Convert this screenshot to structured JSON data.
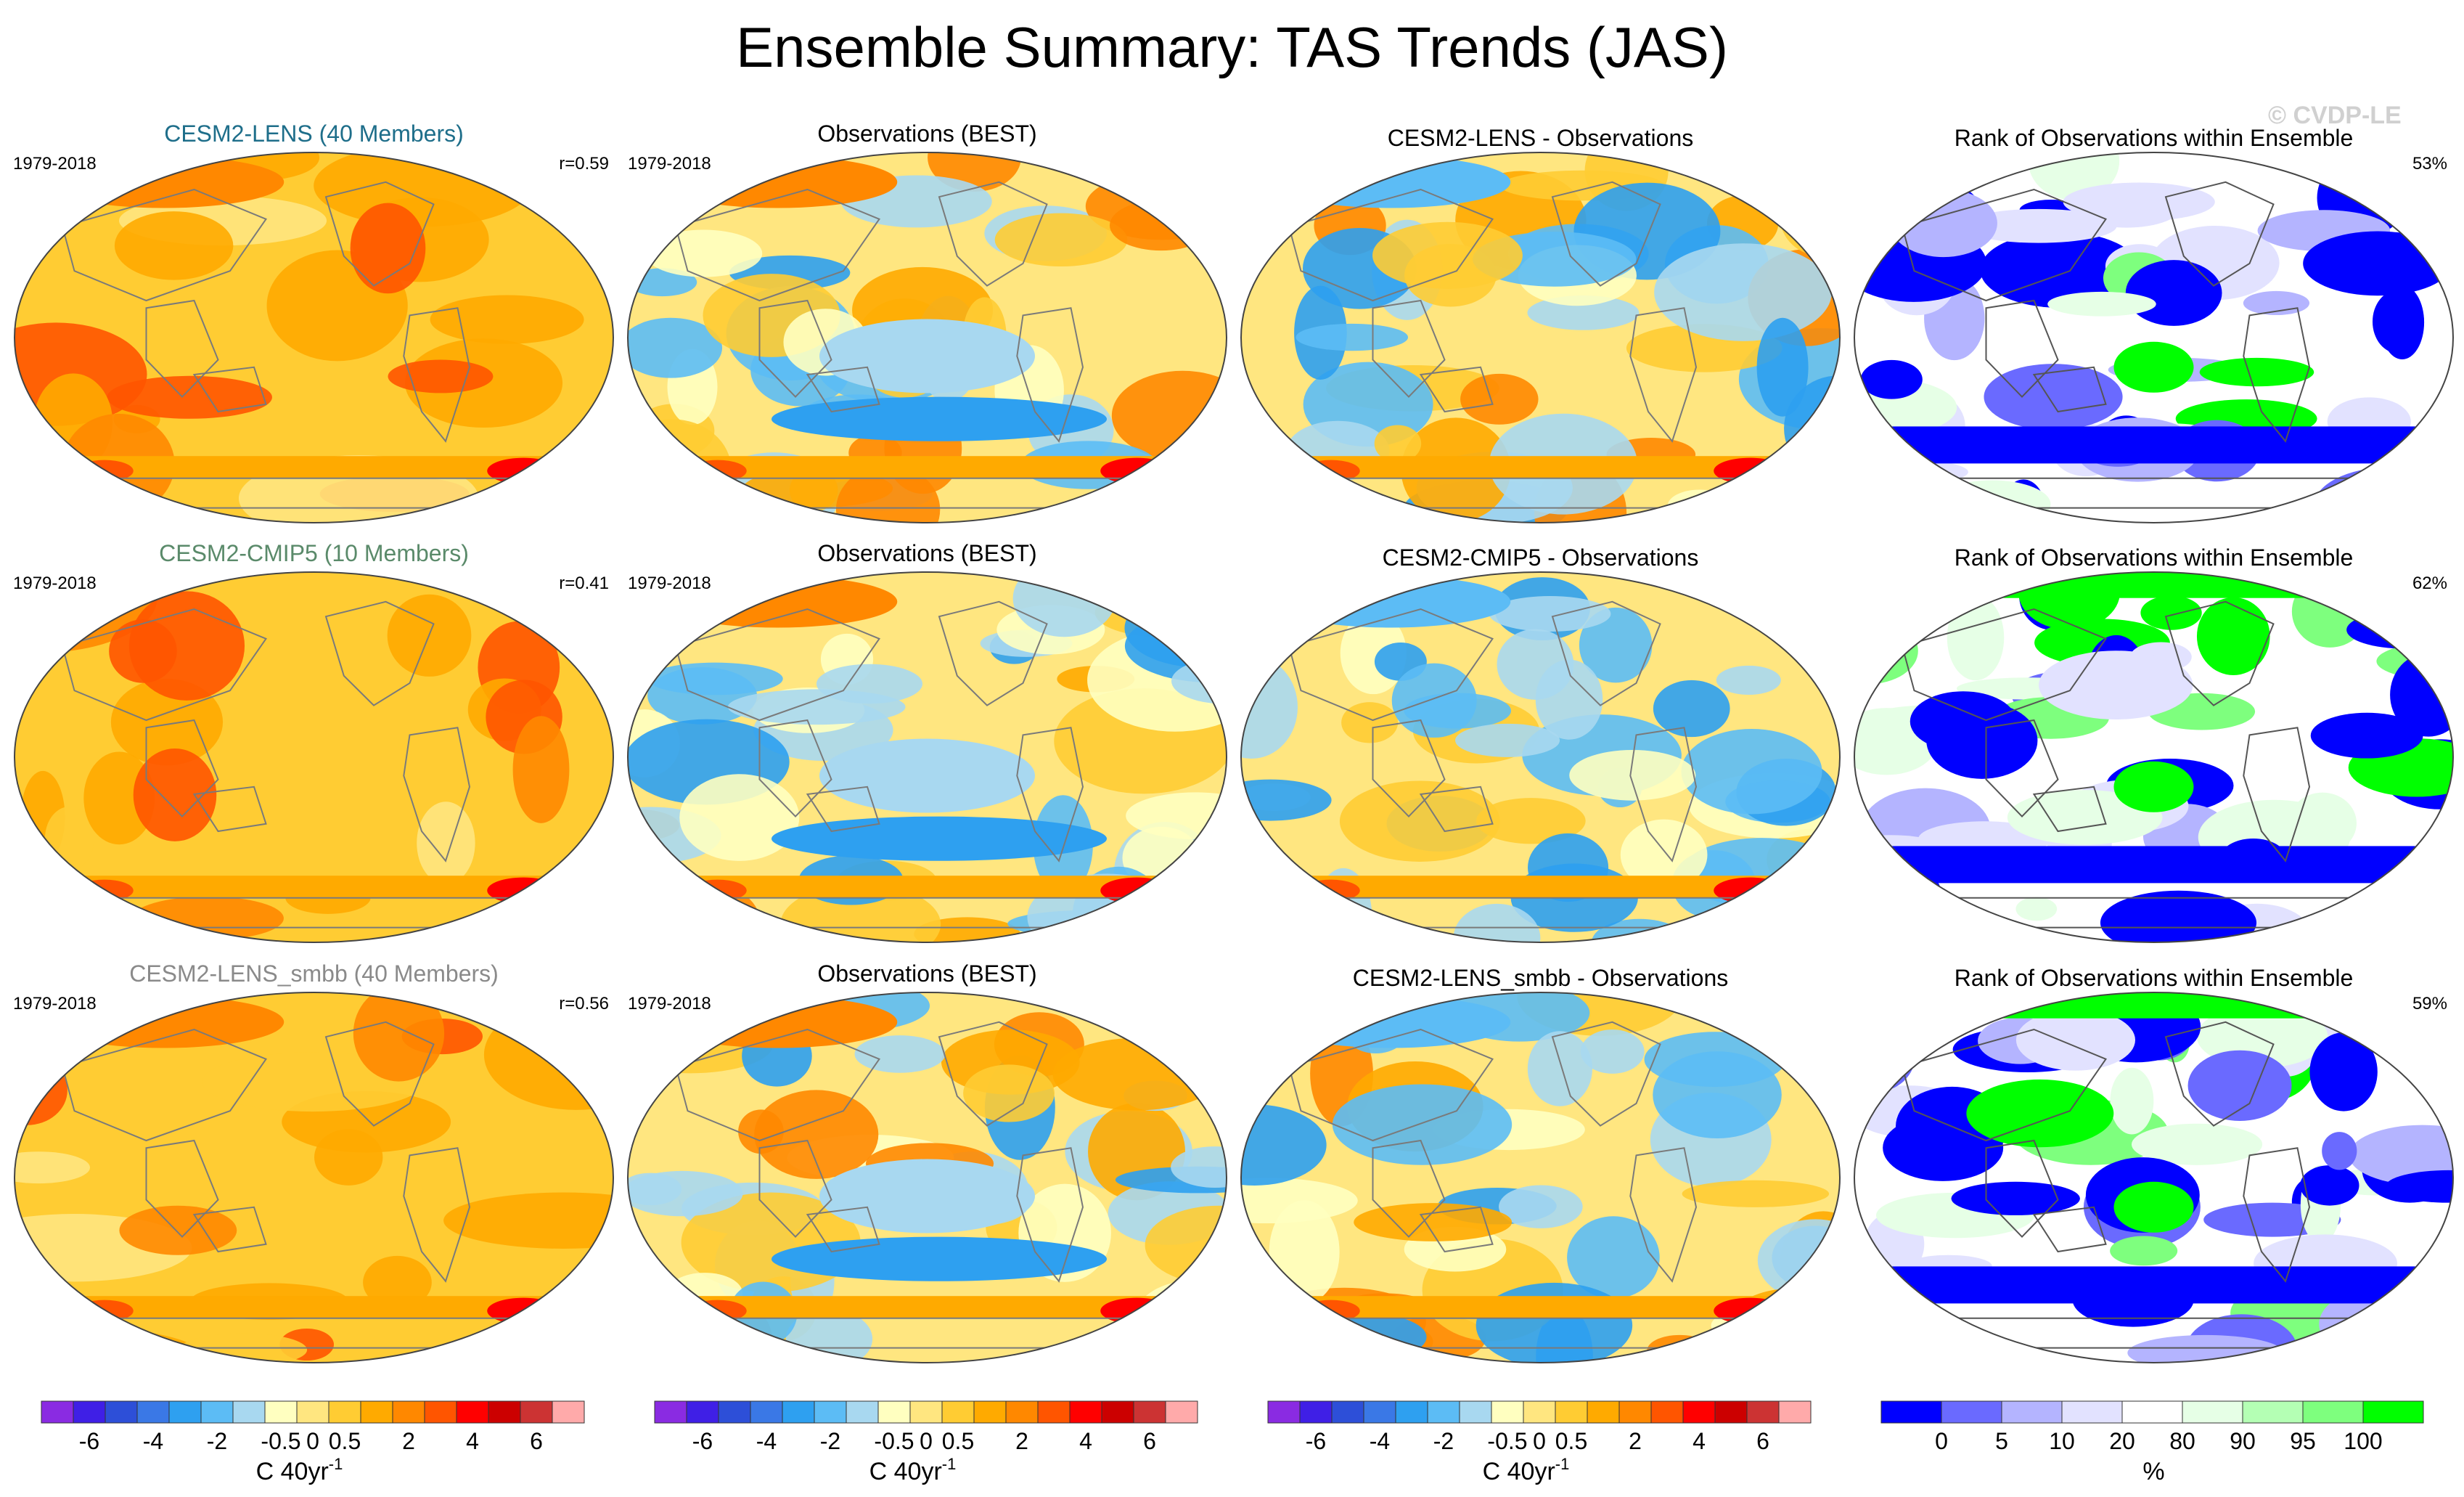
{
  "title": "Ensemble Summary: TAS Trends (JAS)",
  "watermark": "© CVDP-LE",
  "colors": {
    "trend_scale": [
      "#8a2be2",
      "#3f1fe6",
      "#2d4fd8",
      "#3a78e6",
      "#2ea0f0",
      "#5cbcf5",
      "#a8d8f0",
      "#ffffc0",
      "#ffe680",
      "#ffcc33",
      "#ffaa00",
      "#ff8800",
      "#ff5500",
      "#ff0000",
      "#cc0000",
      "#cc3333",
      "#ffaaaa"
    ],
    "rank_scale": [
      "#0000ff",
      "#6a6aff",
      "#b4b4ff",
      "#e2e2ff",
      "#ffffff",
      "#e6ffe6",
      "#b4ffb4",
      "#7eff7e",
      "#00ff00"
    ],
    "land_outline": "#7a7a7a",
    "rank_outline": "#555555"
  },
  "rows": [
    {
      "model": {
        "title": "CESM2-LENS (40 Members)",
        "title_color": "#1e6e8a",
        "period": "1979-2018",
        "corr": "r=0.59"
      },
      "obs": {
        "title": "Observations (BEST)",
        "period": "1979-2018"
      },
      "diff": {
        "title": "CESM2-LENS - Observations"
      },
      "rank": {
        "title": "Rank of Observations within Ensemble",
        "pct": "53%"
      }
    },
    {
      "model": {
        "title": "CESM2-CMIP5 (10 Members)",
        "title_color": "#5a8a6a",
        "period": "1979-2018",
        "corr": "r=0.41"
      },
      "obs": {
        "title": "Observations (BEST)",
        "period": "1979-2018"
      },
      "diff": {
        "title": "CESM2-CMIP5 - Observations"
      },
      "rank": {
        "title": "Rank of Observations within Ensemble",
        "pct": "62%"
      }
    },
    {
      "model": {
        "title": "CESM2-LENS_smbb (40 Members)",
        "title_color": "#8a8a8a",
        "period": "1979-2018",
        "corr": "r=0.56"
      },
      "obs": {
        "title": "Observations (BEST)",
        "period": "1979-2018"
      },
      "diff": {
        "title": "CESM2-LENS_smbb - Observations"
      },
      "rank": {
        "title": "Rank of Observations within Ensemble",
        "pct": "59%"
      }
    }
  ],
  "colorbars": {
    "trend": {
      "ticks": [
        "-6",
        "-4",
        "-2",
        "-0.5",
        "0",
        "0.5",
        "2",
        "4",
        "6"
      ],
      "label": "C 40yr",
      "label_sup": "-1"
    },
    "rank": {
      "ticks": [
        "0",
        "5",
        "10",
        "20",
        "80",
        "90",
        "95",
        "100"
      ],
      "label": "%"
    }
  },
  "chart_data": [
    {
      "type": "heatmap",
      "title": "Ensemble Summary: TAS Trends (JAS)",
      "description_of_fields": "12 global map panels (3 rows x 4 columns) of surface air temperature trends, 1979-2018, July-September",
      "panels": [
        {
          "row": 1,
          "col": 1,
          "title": "CESM2-LENS (40 Members)",
          "period": "1979-2018",
          "r": 0.59,
          "dominant_range_C_per_40yr": [
            0.5,
            2
          ]
        },
        {
          "row": 1,
          "col": 2,
          "title": "Observations (BEST)",
          "period": "1979-2018",
          "dominant_range_C_per_40yr": [
            -0.5,
            2
          ]
        },
        {
          "row": 1,
          "col": 3,
          "title": "CESM2-LENS - Observations",
          "dominant_range_C_per_40yr": [
            -0.5,
            2
          ]
        },
        {
          "row": 1,
          "col": 4,
          "title": "Rank of Observations within Ensemble",
          "pct": 53
        },
        {
          "row": 2,
          "col": 1,
          "title": "CESM2-CMIP5 (10 Members)",
          "period": "1979-2018",
          "r": 0.41,
          "dominant_range_C_per_40yr": [
            0.5,
            2
          ]
        },
        {
          "row": 2,
          "col": 2,
          "title": "Observations (BEST)",
          "period": "1979-2018",
          "dominant_range_C_per_40yr": [
            -0.5,
            2
          ]
        },
        {
          "row": 2,
          "col": 3,
          "title": "CESM2-CMIP5 - Observations",
          "dominant_range_C_per_40yr": [
            -0.5,
            0.5
          ]
        },
        {
          "row": 2,
          "col": 4,
          "title": "Rank of Observations within Ensemble",
          "pct": 62
        },
        {
          "row": 3,
          "col": 1,
          "title": "CESM2-LENS_smbb (40 Members)",
          "period": "1979-2018",
          "r": 0.56,
          "dominant_range_C_per_40yr": [
            0.5,
            2
          ]
        },
        {
          "row": 3,
          "col": 2,
          "title": "Observations (BEST)",
          "period": "1979-2018",
          "dominant_range_C_per_40yr": [
            -0.5,
            2
          ]
        },
        {
          "row": 3,
          "col": 3,
          "title": "CESM2-LENS_smbb - Observations",
          "dominant_range_C_per_40yr": [
            -0.5,
            2
          ]
        },
        {
          "row": 3,
          "col": 4,
          "title": "Rank of Observations within Ensemble",
          "pct": 59
        }
      ],
      "trend_colorbar": {
        "ticks": [
          -6,
          -4,
          -2,
          -0.5,
          0,
          0.5,
          2,
          4,
          6
        ],
        "units": "C 40yr-1"
      },
      "rank_colorbar": {
        "ticks": [
          0,
          5,
          10,
          20,
          80,
          90,
          95,
          100
        ],
        "units": "%"
      }
    }
  ]
}
